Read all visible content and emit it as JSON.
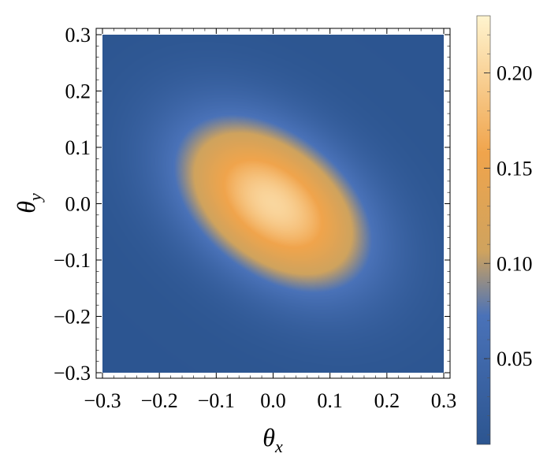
{
  "chart_data": {
    "type": "heatmap",
    "title": "",
    "xlabel": "θ",
    "xlabel_sub": "x",
    "ylabel": "θ",
    "ylabel_sub": "y",
    "xlim": [
      -0.3,
      0.3
    ],
    "ylim": [
      -0.3,
      0.3
    ],
    "x_ticks": [
      -0.3,
      -0.2,
      -0.1,
      0.0,
      0.1,
      0.2,
      0.3
    ],
    "x_tick_labels": [
      "−0.3",
      "−0.2",
      "−0.1",
      "0.0",
      "0.1",
      "0.2",
      "0.3"
    ],
    "y_ticks": [
      -0.3,
      -0.2,
      -0.1,
      0.0,
      0.1,
      0.2,
      0.3
    ],
    "y_tick_labels": [
      "−0.3",
      "−0.2",
      "−0.1",
      "0.0",
      "0.1",
      "0.2",
      "0.3"
    ],
    "grid": false,
    "colorbar": {
      "placement": "right",
      "range": [
        0.005,
        0.23
      ],
      "ticks": [
        0.05,
        0.1,
        0.15,
        0.2
      ],
      "tick_labels": [
        "0.05",
        "0.10",
        "0.15",
        "0.20"
      ],
      "colormap": [
        "#2c5590",
        "#4a72b8",
        "#cfa35e",
        "#f0a44c",
        "#fff4cf"
      ]
    },
    "field": {
      "description_model": "two overlapping gaussian lobes tilted along the anti-diagonal",
      "lobes": [
        {
          "cx": -0.05,
          "cy": 0.04,
          "amplitude": 0.115
        },
        {
          "cx": 0.05,
          "cy": -0.04,
          "amplitude": 0.115
        }
      ],
      "sigma_major": 0.115,
      "sigma_minor": 0.085,
      "tilt_deg": -38,
      "background": 0.006
    }
  }
}
